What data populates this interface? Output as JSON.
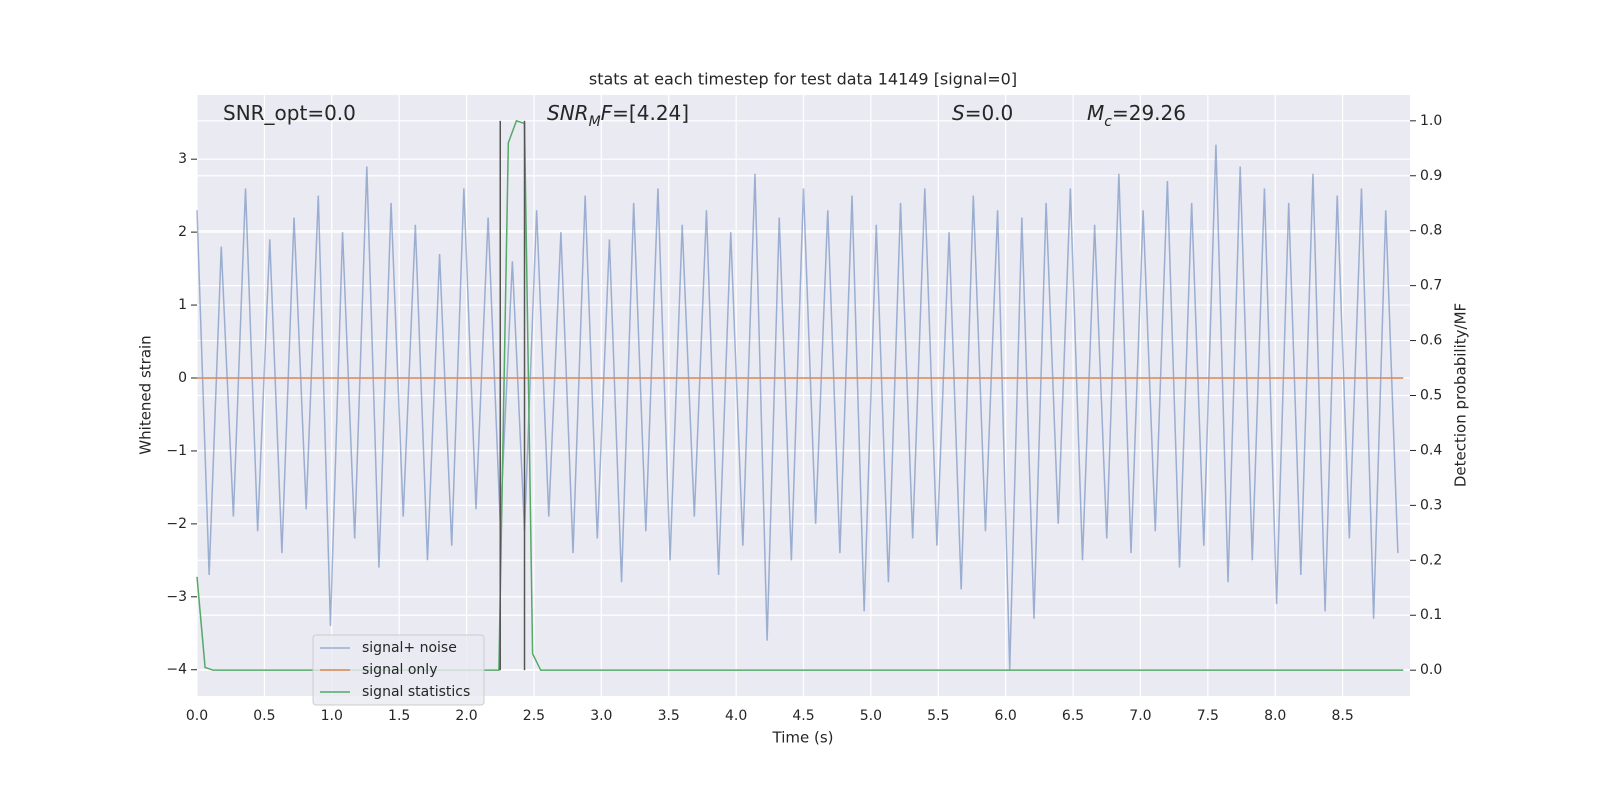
{
  "chart_data": {
    "type": "line",
    "title": "stats at each timestep for test data 14149 [signal=0]",
    "x_label": "Time (s)",
    "y_label": "Whitened strain",
    "y2_label": "Detection probability/MF",
    "xlim": [
      0,
      9.0
    ],
    "ylim": [
      -4.36,
      3.88
    ],
    "y2lim": [
      -0.047,
      1.047
    ],
    "xticks": [
      {
        "value": 0,
        "label": "0.0"
      },
      0.5,
      {
        "value": 1,
        "label": "1.0"
      },
      1.5,
      {
        "value": 2,
        "label": "2.0"
      },
      2.5,
      {
        "value": 3,
        "label": "3.0"
      },
      3.5,
      {
        "value": 4,
        "label": "4.0"
      },
      4.5,
      {
        "value": 5,
        "label": "5.0"
      },
      5.5,
      {
        "value": 6,
        "label": "6.0"
      },
      6.5,
      {
        "value": 7,
        "label": "7.0"
      },
      7.5,
      {
        "value": 8,
        "label": "8.0"
      },
      8.5
    ],
    "yticks": [
      3,
      2,
      1,
      0,
      {
        "value": -1,
        "label": "−1"
      },
      {
        "value": -2,
        "label": "−2"
      },
      {
        "value": -3,
        "label": "−3"
      },
      {
        "value": -4,
        "label": "−4"
      }
    ],
    "y2ticks": [
      {
        "value": 1,
        "label": "1.0"
      },
      0.9,
      0.8,
      0.7,
      0.6,
      0.5,
      0.4,
      0.3,
      0.2,
      0.1,
      {
        "value": 0,
        "label": "0.0"
      }
    ],
    "grid": true,
    "series": [
      {
        "name": "signal+ noise",
        "color": "#4c72b0",
        "opacity": 0.5,
        "x": [
          0,
          0.09,
          0.18,
          0.27,
          0.36,
          0.45,
          0.54,
          0.63,
          0.72,
          0.81,
          0.9,
          0.99,
          1.08,
          1.17,
          1.26,
          1.35,
          1.44,
          1.53,
          1.62,
          1.71,
          1.8,
          1.89,
          1.98,
          2.07,
          2.16,
          2.25,
          2.34,
          2.43,
          2.52,
          2.61,
          2.7,
          2.79,
          2.88,
          2.97,
          3.06,
          3.15,
          3.24,
          3.33,
          3.42,
          3.51,
          3.6,
          3.69,
          3.78,
          3.87,
          3.96,
          4.05,
          4.14,
          4.23,
          4.32,
          4.41,
          4.5,
          4.59,
          4.68,
          4.77,
          4.86,
          4.95,
          5.04,
          5.13,
          5.22,
          5.31,
          5.4,
          5.49,
          5.58,
          5.67,
          5.76,
          5.85,
          5.94,
          6.03,
          6.12,
          6.21,
          6.3,
          6.39,
          6.48,
          6.57,
          6.66,
          6.75,
          6.84,
          6.93,
          7.02,
          7.11,
          7.2,
          7.29,
          7.38,
          7.47,
          7.56,
          7.65,
          7.74,
          7.83,
          7.92,
          8.01,
          8.1,
          8.19,
          8.28,
          8.37,
          8.46,
          8.55,
          8.64,
          8.73,
          8.82,
          8.91
        ],
        "values": [
          2.3,
          -2.7,
          1.8,
          -1.9,
          2.6,
          -2.1,
          1.9,
          -2.4,
          2.2,
          -1.8,
          2.5,
          -3.4,
          2.0,
          -2.2,
          2.9,
          -2.6,
          2.4,
          -1.9,
          2.1,
          -2.5,
          1.7,
          -2.3,
          2.6,
          -1.8,
          2.2,
          -2.0,
          1.6,
          -2.1,
          2.3,
          -1.9,
          2.0,
          -2.4,
          2.5,
          -2.2,
          1.9,
          -2.8,
          2.4,
          -2.1,
          2.6,
          -2.5,
          2.1,
          -1.9,
          2.3,
          -2.7,
          2.0,
          -2.3,
          2.8,
          -3.6,
          2.2,
          -2.5,
          2.6,
          -2.0,
          2.3,
          -2.4,
          2.5,
          -3.2,
          2.1,
          -2.8,
          2.4,
          -2.2,
          2.6,
          -2.3,
          2.0,
          -2.9,
          2.5,
          -2.1,
          2.3,
          -4.0,
          2.2,
          -3.3,
          2.4,
          -2.0,
          2.6,
          -2.5,
          2.1,
          -2.2,
          2.8,
          -2.4,
          2.3,
          -2.1,
          2.7,
          -2.6,
          2.4,
          -2.3,
          3.2,
          -2.8,
          2.9,
          -2.5,
          2.6,
          -3.1,
          2.4,
          -2.7,
          2.8,
          -3.2,
          2.5,
          -2.2,
          2.6,
          -3.3,
          2.3,
          -2.4
        ]
      },
      {
        "name": "signal only",
        "color": "#dd8452",
        "x": [
          0,
          8.95
        ],
        "values": [
          0,
          0
        ]
      },
      {
        "name": "signal statistics",
        "color": "#55a868",
        "axis": "y2",
        "x": [
          0,
          0.06,
          0.12,
          2.24,
          2.31,
          2.37,
          2.43,
          2.49,
          2.55,
          8.95
        ],
        "values": [
          0.17,
          0.005,
          0,
          0,
          0.96,
          1.0,
          0.995,
          0.03,
          0,
          0
        ]
      }
    ],
    "vlines": {
      "color": "#555555",
      "x": [
        2.25,
        2.43
      ],
      "y2": [
        0,
        1
      ]
    },
    "annotations": [
      {
        "parts": [
          {
            "text": "SNR_opt=0.0"
          }
        ]
      },
      {
        "parts": [
          {
            "text": "SNR",
            "italic": true
          },
          {
            "text": "M",
            "italic": true,
            "sub": true
          },
          {
            "text": "F",
            "italic": true
          },
          {
            "text": "=[4.24]"
          }
        ]
      },
      {
        "parts": [
          {
            "text": "S",
            "italic": true
          },
          {
            "text": "=0.0"
          }
        ]
      },
      {
        "parts": [
          {
            "text": "M",
            "italic": true
          },
          {
            "text": "c",
            "italic": true,
            "sub": true
          },
          {
            "text": "=29.26"
          }
        ]
      }
    ]
  }
}
